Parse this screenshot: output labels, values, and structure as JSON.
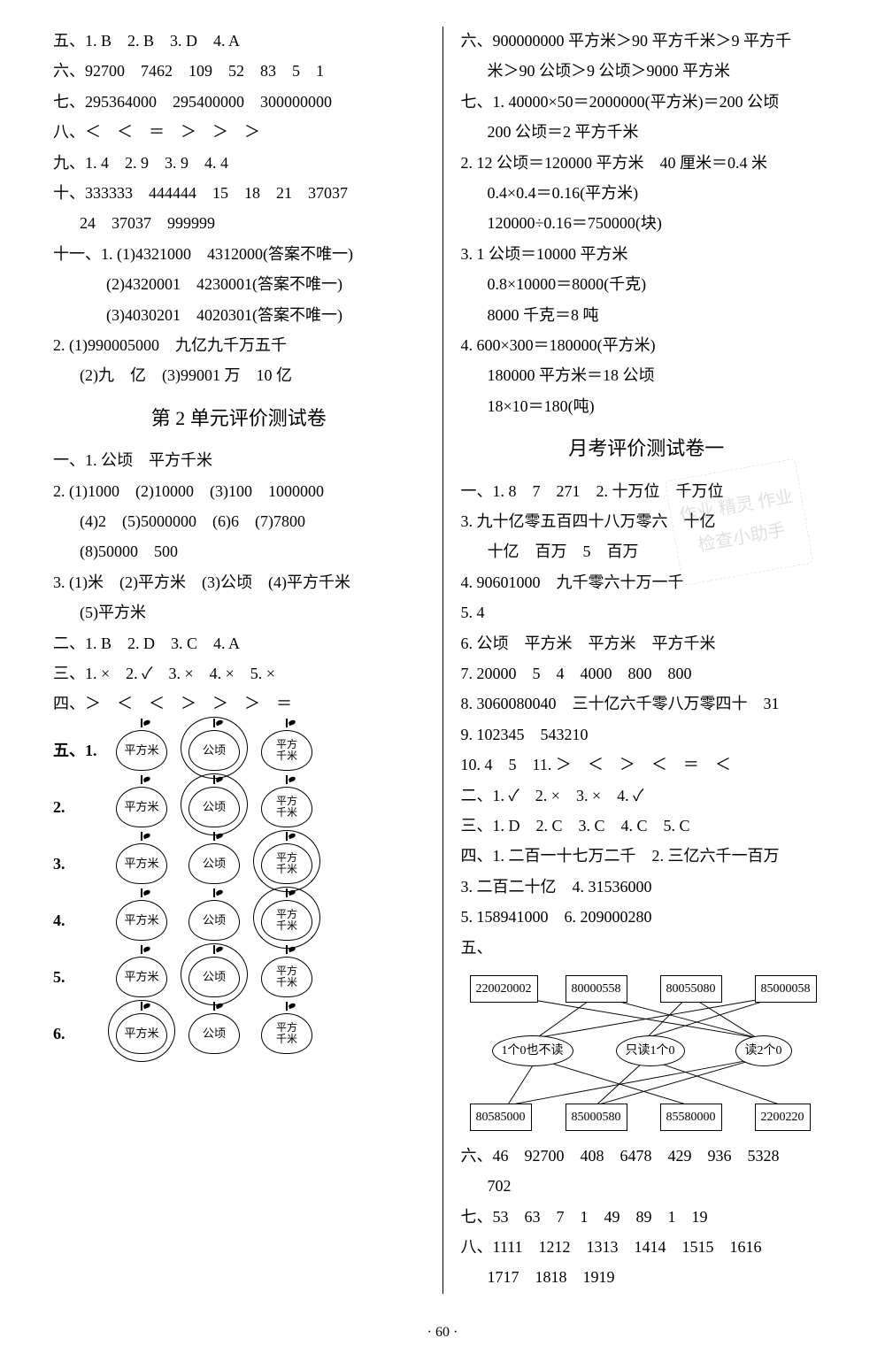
{
  "left": {
    "l1": "五、1. B　2. B　3. D　4. A",
    "l2": "六、92700　7462　109　52　83　5　1",
    "l3": "七、295364000　295400000　300000000",
    "l4": "八、＜　＜　＝　＞　＞　＞",
    "l5": "九、1. 4　2. 9　3. 9　4. 4",
    "l6": "十、333333　444444　15　18　21　37037",
    "l6b": "24　37037　999999",
    "l7": "十一、1. (1)4321000　4312000(答案不唯一)",
    "l7b": "(2)4320001　4230001(答案不唯一)",
    "l7c": "(3)4030201　4020301(答案不唯一)",
    "l8": "2. (1)990005000　九亿九千万五千",
    "l8b": "(2)九　亿　(3)99001 万　10 亿",
    "h1": "第 2 单元评价测试卷",
    "l9": "一、1. 公顷　平方千米",
    "l10": "2. (1)1000　(2)10000　(3)100　1000000",
    "l10b": "(4)2　(5)5000000　(6)6　(7)7800",
    "l10c": "(8)50000　500",
    "l11": "3. (1)米　(2)平方米　(3)公顷　(4)平方千米",
    "l11b": "(5)平方米",
    "l12": "二、1. B　2. D　3. C　4. A",
    "l13": "三、1. ×　2. ✓　3. ×　4. ×　5. ×",
    "l14": "四、＞　＜　＜　＞　＞　＞　＝",
    "apples": {
      "labels": [
        "五、1.",
        "2.",
        "3.",
        "4.",
        "5.",
        "6."
      ],
      "cols": [
        "平方米",
        "公顷",
        "平方\n千米"
      ],
      "circled": [
        [
          1
        ],
        [
          1
        ],
        [
          2
        ],
        [
          2
        ],
        [
          1
        ],
        [
          0
        ]
      ]
    }
  },
  "right": {
    "l1": "六、900000000 平方米＞90 平方千米＞9 平方千",
    "l1b": "米＞90 公顷＞9 公顷＞9000 平方米",
    "l2": "七、1. 40000×50＝2000000(平方米)＝200 公顷",
    "l2b": "200 公顷＝2 平方千米",
    "l3": "2. 12 公顷＝120000 平方米　40 厘米＝0.4 米",
    "l3b": "0.4×0.4＝0.16(平方米)",
    "l3c": "120000÷0.16＝750000(块)",
    "l4": "3. 1 公顷＝10000 平方米",
    "l4b": "0.8×10000＝8000(千克)",
    "l4c": "8000 千克＝8 吨",
    "l5": "4. 600×300＝180000(平方米)",
    "l5b": "180000 平方米＝18 公顷",
    "l5c": "18×10＝180(吨)",
    "h1": "月考评价测试卷一",
    "l6": "一、1. 8　7　271　2. 十万位　千万位",
    "l7": "3. 九十亿零五百四十八万零六　十亿",
    "l7b": "十亿　百万　5　百万",
    "l8": "4. 90601000　九千零六十万一千",
    "l9": "5. 4",
    "l10": "6. 公顷　平方米　平方米　平方千米",
    "l11": "7. 20000　5　4　4000　800　800",
    "l12": "8. 3060080040　三十亿六千零八万零四十　31",
    "l13": "9. 102345　543210",
    "l14": "10. 4　5　11. ＞　＜　＞　＜　＝　＜",
    "l15": "二、1. ✓　2. ×　3. ×　4. ✓",
    "l16": "三、1. D　2. C　3. C　4. C　5. C",
    "l17": "四、1. 二百一十七万二千　2. 三亿六千一百万",
    "l18": "3. 二百二十亿　4. 31536000",
    "l19": "5. 158941000　6. 209000280",
    "l20": "五、",
    "diagram": {
      "top": [
        "220020002",
        "80000558",
        "80055080",
        "85000058"
      ],
      "mid": [
        "1个0也不读",
        "只读1个0",
        "读2个0"
      ],
      "bot": [
        "80585000",
        "85000580",
        "85580000",
        "2200220"
      ]
    },
    "l21": "六、46　92700　408　6478　429　936　5328",
    "l21b": "702",
    "l22": "七、53　63　7　1　49　89　1　19",
    "l23": "八、1111　1212　1313　1414　1515　1616",
    "l23b": "1717　1818　1919"
  },
  "pageNum": "· 60 ·",
  "watermark": "作业\n精灵\n作业检查小助手"
}
